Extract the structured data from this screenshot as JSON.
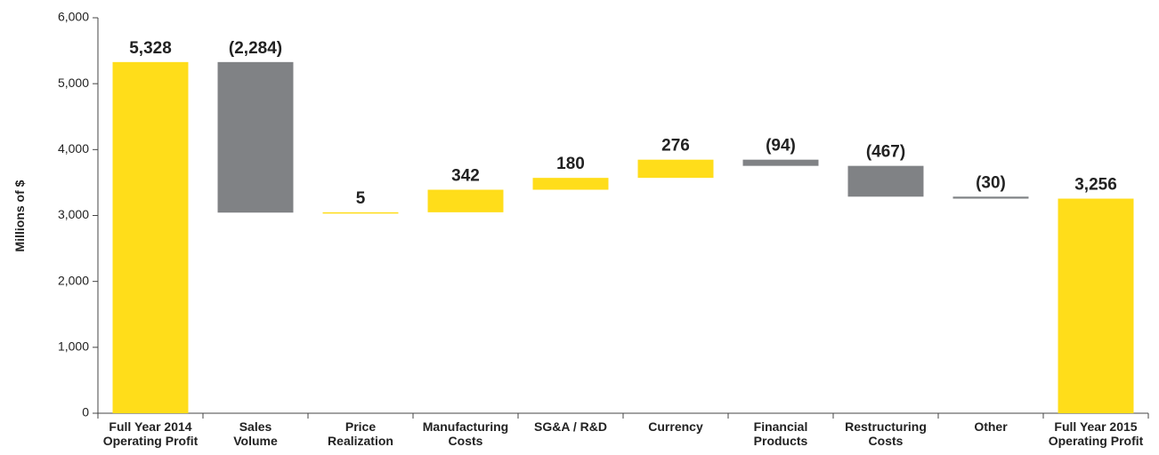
{
  "chart_data": {
    "type": "waterfall",
    "y_label": "Millions of $",
    "categories": [
      [
        "Full Year 2014",
        "Operating Profit"
      ],
      [
        "Sales",
        "Volume"
      ],
      [
        "Price",
        "Realization"
      ],
      [
        "Manufacturing",
        "Costs"
      ],
      [
        "SG&A / R&D"
      ],
      [
        "Currency"
      ],
      [
        "Financial",
        "Products"
      ],
      [
        "Restructuring",
        "Costs"
      ],
      [
        "Other"
      ],
      [
        "Full Year 2015",
        "Operating Profit"
      ]
    ],
    "measure": [
      "total",
      "relative",
      "relative",
      "relative",
      "relative",
      "relative",
      "relative",
      "relative",
      "relative",
      "total"
    ],
    "values": [
      5328,
      -2284,
      5,
      342,
      180,
      276,
      -94,
      -467,
      -30,
      3256
    ],
    "value_labels": [
      "5,328",
      "(2,284)",
      "5",
      "342",
      "180",
      "276",
      "(94)",
      "(467)",
      "(30)",
      "3,256"
    ],
    "increase_color": "#ffdd1a",
    "decrease_color": "#808285",
    "total_color": "#ffdd1a",
    "ylim": [
      0,
      6000
    ],
    "yticks": [
      0,
      {
        "value": 1000,
        "label": "1,000"
      },
      {
        "value": 2000,
        "label": "2,000"
      },
      {
        "value": 3000,
        "label": "3,000"
      },
      {
        "value": 4000,
        "label": "4,000"
      },
      {
        "value": 5000,
        "label": "5,000"
      },
      {
        "value": 6000,
        "label": "6,000"
      }
    ],
    "grid": false
  }
}
